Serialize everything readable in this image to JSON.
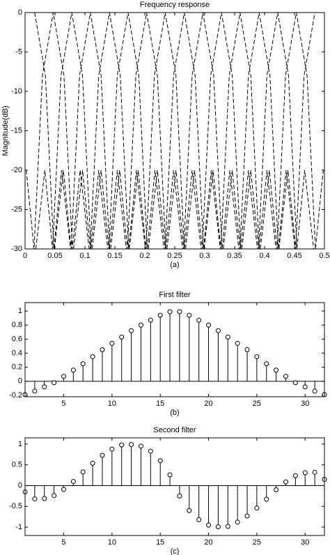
{
  "chart_data": [
    {
      "type": "line",
      "title": "Frequency response",
      "xlabel": "(a)",
      "ylabel": "Magnitude(dB)",
      "line_style": "dashed",
      "color": "#000000",
      "xlim": [
        0,
        0.5
      ],
      "ylim": [
        -30,
        0
      ],
      "xticks": [
        0,
        0.05,
        0.1,
        0.15,
        0.2,
        0.25,
        0.3,
        0.35,
        0.4,
        0.45,
        0.5
      ],
      "yticks": [
        0,
        -5,
        -10,
        -15,
        -20,
        -25,
        -30
      ],
      "series": [
        {
          "x": [
            0.016,
            0.034,
            0.048,
            0.061,
            0.076
          ],
          "values": [
            0,
            -8,
            -30,
            -20,
            -30
          ]
        },
        {
          "x": [
            0.002,
            0.015,
            0.029,
            0.047,
            0.065,
            0.079,
            0.092,
            0.107
          ],
          "values": [
            -20,
            -30,
            -8,
            0,
            -8,
            -30,
            -20,
            -30
          ]
        },
        {
          "x": [
            0.018,
            0.033,
            0.046,
            0.06,
            0.078,
            0.096,
            0.11,
            0.123,
            0.138
          ],
          "values": [
            -30,
            -20,
            -30,
            -8,
            0,
            -8,
            -30,
            -20,
            -30
          ]
        },
        {
          "x": [
            0.049,
            0.064,
            0.077,
            0.091,
            0.109,
            0.127,
            0.141,
            0.154,
            0.169
          ],
          "values": [
            -30,
            -20,
            -30,
            -8,
            0,
            -8,
            -30,
            -20,
            -30
          ]
        },
        {
          "x": [
            0.081,
            0.096,
            0.109,
            0.123,
            0.141,
            0.159,
            0.173,
            0.186,
            0.201
          ],
          "values": [
            -30,
            -20,
            -30,
            -8,
            0,
            -8,
            -30,
            -20,
            -30
          ]
        },
        {
          "x": [
            0.112,
            0.127,
            0.14,
            0.154,
            0.172,
            0.19,
            0.204,
            0.217,
            0.232
          ],
          "values": [
            -30,
            -20,
            -30,
            -8,
            0,
            -8,
            -30,
            -20,
            -30
          ]
        },
        {
          "x": [
            0.143,
            0.158,
            0.171,
            0.185,
            0.203,
            0.221,
            0.235,
            0.248,
            0.263
          ],
          "values": [
            -30,
            -20,
            -30,
            -8,
            0,
            -8,
            -30,
            -20,
            -30
          ]
        },
        {
          "x": [
            0.174,
            0.189,
            0.202,
            0.216,
            0.234,
            0.252,
            0.266,
            0.279,
            0.294
          ],
          "values": [
            -30,
            -20,
            -30,
            -8,
            0,
            -8,
            -30,
            -20,
            -30
          ]
        },
        {
          "x": [
            0.206,
            0.221,
            0.234,
            0.248,
            0.266,
            0.284,
            0.298,
            0.311,
            0.326
          ],
          "values": [
            -30,
            -20,
            -30,
            -8,
            0,
            -8,
            -30,
            -20,
            -30
          ]
        },
        {
          "x": [
            0.237,
            0.252,
            0.265,
            0.279,
            0.297,
            0.315,
            0.329,
            0.342,
            0.357
          ],
          "values": [
            -30,
            -20,
            -30,
            -8,
            0,
            -8,
            -30,
            -20,
            -30
          ]
        },
        {
          "x": [
            0.268,
            0.283,
            0.296,
            0.31,
            0.328,
            0.346,
            0.36,
            0.373,
            0.388
          ],
          "values": [
            -30,
            -20,
            -30,
            -8,
            0,
            -8,
            -30,
            -20,
            -30
          ]
        },
        {
          "x": [
            0.299,
            0.314,
            0.327,
            0.341,
            0.359,
            0.377,
            0.391,
            0.404,
            0.419
          ],
          "values": [
            -30,
            -20,
            -30,
            -8,
            0,
            -8,
            -30,
            -20,
            -30
          ]
        },
        {
          "x": [
            0.331,
            0.346,
            0.359,
            0.373,
            0.391,
            0.409,
            0.423,
            0.436,
            0.451
          ],
          "values": [
            -30,
            -20,
            -30,
            -8,
            0,
            -8,
            -30,
            -20,
            -30
          ]
        },
        {
          "x": [
            0.362,
            0.377,
            0.39,
            0.404,
            0.422,
            0.44,
            0.454,
            0.467,
            0.482
          ],
          "values": [
            -30,
            -20,
            -30,
            -8,
            0,
            -8,
            -30,
            -20,
            -30
          ]
        },
        {
          "x": [
            0.393,
            0.408,
            0.421,
            0.435,
            0.453,
            0.471,
            0.485,
            0.498
          ],
          "values": [
            -30,
            -20,
            -30,
            -8,
            0,
            -8,
            -30,
            -20
          ]
        },
        {
          "x": [
            0.424,
            0.439,
            0.452,
            0.466,
            0.484
          ],
          "values": [
            -30,
            -20,
            -30,
            -8,
            0
          ]
        }
      ]
    },
    {
      "type": "stem",
      "title": "First filter",
      "xlabel": "(b)",
      "color": "#000000",
      "xlim": [
        1,
        32
      ],
      "ylim": [
        -0.22,
        1.12
      ],
      "xticks": [
        5,
        10,
        15,
        20,
        25,
        30
      ],
      "yticks": [
        -0.2,
        0,
        0.2,
        0.4,
        0.6,
        0.8,
        1
      ],
      "x": [
        1,
        2,
        3,
        4,
        5,
        6,
        7,
        8,
        9,
        10,
        11,
        12,
        13,
        14,
        15,
        16,
        17,
        18,
        19,
        20,
        21,
        22,
        23,
        24,
        25,
        26,
        27,
        28,
        29,
        30,
        31,
        32
      ],
      "values": [
        -0.19,
        -0.14,
        -0.08,
        -0.02,
        0.07,
        0.16,
        0.25,
        0.35,
        0.45,
        0.54,
        0.63,
        0.72,
        0.8,
        0.87,
        0.94,
        0.99,
        0.99,
        0.94,
        0.87,
        0.8,
        0.72,
        0.63,
        0.54,
        0.45,
        0.35,
        0.25,
        0.16,
        0.07,
        -0.02,
        -0.08,
        -0.14,
        -0.19
      ]
    },
    {
      "type": "stem",
      "title": "Second filter",
      "xlabel": "(c)",
      "color": "#000000",
      "xlim": [
        1,
        32
      ],
      "ylim": [
        -1.2,
        1.15
      ],
      "xticks": [
        5,
        10,
        15,
        20,
        25,
        30
      ],
      "yticks": [
        -1,
        -0.5,
        0,
        0.5,
        1
      ],
      "x": [
        1,
        2,
        3,
        4,
        5,
        6,
        7,
        8,
        9,
        10,
        11,
        12,
        13,
        14,
        15,
        16,
        17,
        18,
        19,
        20,
        21,
        22,
        23,
        24,
        25,
        26,
        27,
        28,
        29,
        30,
        31,
        32
      ],
      "values": [
        -0.15,
        -0.32,
        -0.31,
        -0.24,
        -0.09,
        0.1,
        0.33,
        0.54,
        0.73,
        0.88,
        0.98,
        0.99,
        0.95,
        0.83,
        0.6,
        0.26,
        -0.25,
        -0.6,
        -0.82,
        -0.95,
        -0.99,
        -0.98,
        -0.88,
        -0.73,
        -0.54,
        -0.33,
        -0.1,
        0.09,
        0.24,
        0.31,
        0.32,
        0.15
      ]
    }
  ]
}
